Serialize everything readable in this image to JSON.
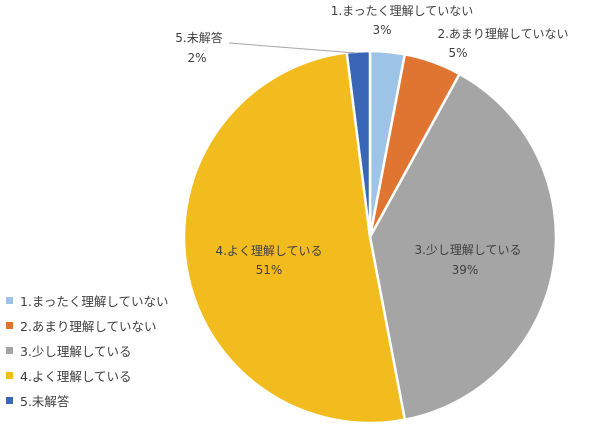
{
  "chart_data": {
    "type": "pie",
    "categories": [
      "1.まったく理解していない",
      "2.あまり理解していない",
      "3.少し理解している",
      "4.よく理解している",
      "5.未解答"
    ],
    "values": [
      3,
      5,
      39,
      51,
      2
    ],
    "data_labels": [
      "3%",
      "5%",
      "39%",
      "51%",
      "2%"
    ],
    "colors": [
      "#9dc3e6",
      "#e07532",
      "#a5a5a5",
      "#f2bb1e",
      "#3a66b8"
    ],
    "legend_position": "left"
  }
}
